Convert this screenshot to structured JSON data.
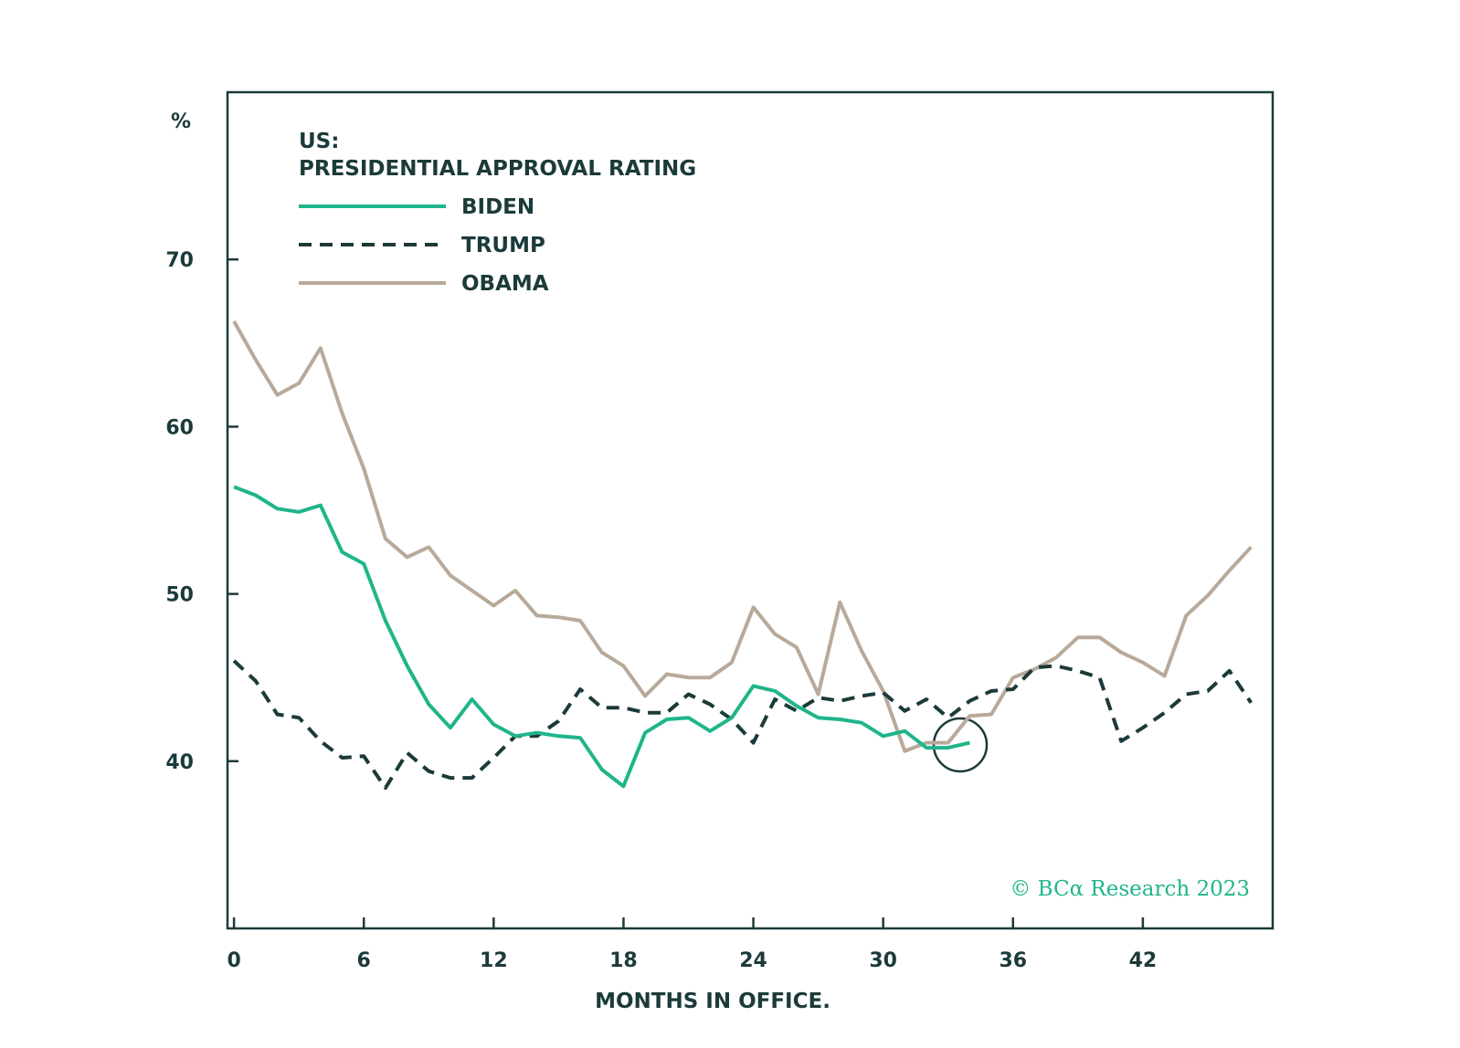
{
  "chart_data": {
    "type": "line",
    "title": [
      "US:",
      "PRESIDENTIAL APPROVAL RATING"
    ],
    "y_unit": "%",
    "x_label": "MONTHS IN OFFICE.",
    "source": "© BCα Research 2023",
    "xlim": [
      -0.3,
      48
    ],
    "xticks": [
      0,
      6,
      12,
      18,
      24,
      30,
      36,
      42
    ],
    "ylim": [
      30,
      80
    ],
    "yticks": [
      40,
      50,
      60,
      70
    ],
    "x": [
      0,
      1,
      2,
      3,
      4,
      5,
      6,
      7,
      8,
      9,
      10,
      11,
      12,
      13,
      14,
      15,
      16,
      17,
      18,
      19,
      20,
      21,
      22,
      23,
      24,
      25,
      26,
      27,
      28,
      29,
      30,
      31,
      32,
      33,
      34,
      35,
      36,
      37,
      38,
      39,
      40,
      41,
      42,
      43,
      44,
      45,
      46,
      47
    ],
    "series": [
      {
        "name": "BIDEN",
        "color": "#1fb58a",
        "dash": false,
        "values": [
          56.4,
          55.9,
          55.1,
          54.9,
          55.3,
          52.5,
          51.8,
          48.4,
          45.7,
          43.4,
          42,
          43.7,
          42.2,
          41.5,
          41.7,
          41.5,
          41.4,
          39.5,
          38.5,
          41.7,
          42.5,
          42.6,
          41.8,
          42.6,
          44.5,
          44.2,
          43.3,
          42.6,
          42.5,
          42.3,
          41.5,
          41.8,
          40.8,
          40.8,
          41.1,
          null,
          null,
          null,
          null,
          null,
          null,
          null,
          null,
          null,
          null,
          null,
          null,
          null
        ]
      },
      {
        "name": "TRUMP",
        "color": "#1c3a3a",
        "dash": true,
        "values": [
          46,
          44.8,
          42.8,
          42.6,
          41.2,
          40.2,
          40.3,
          38.4,
          40.5,
          39.4,
          39,
          39,
          40.2,
          41.5,
          41.5,
          42.4,
          44.3,
          43.2,
          43.2,
          42.9,
          42.9,
          44,
          43.4,
          42.5,
          41.1,
          43.7,
          43,
          43.8,
          43.6,
          43.9,
          44.1,
          43,
          43.7,
          42.6,
          43.6,
          44.2,
          44.3,
          45.6,
          45.7,
          45.4,
          45,
          41.2,
          42,
          42.9,
          44,
          44.2,
          45.4,
          43.5
        ]
      },
      {
        "name": "OBAMA",
        "color": "#b8a99a",
        "dash": false,
        "values": [
          66.3,
          64,
          61.9,
          62.6,
          64.7,
          60.8,
          57.5,
          53.3,
          52.2,
          52.8,
          51.1,
          50.2,
          49.3,
          50.2,
          48.7,
          48.6,
          48.4,
          46.5,
          45.7,
          43.9,
          45.2,
          45,
          45,
          45.9,
          49.2,
          47.6,
          46.8,
          44,
          49.5,
          46.6,
          44.2,
          40.6,
          41.1,
          41.1,
          42.7,
          42.8,
          45,
          45.5,
          46.2,
          47.4,
          47.4,
          46.5,
          45.9,
          45.1,
          48.7,
          49.9,
          51.4,
          52.8
        ]
      }
    ]
  }
}
